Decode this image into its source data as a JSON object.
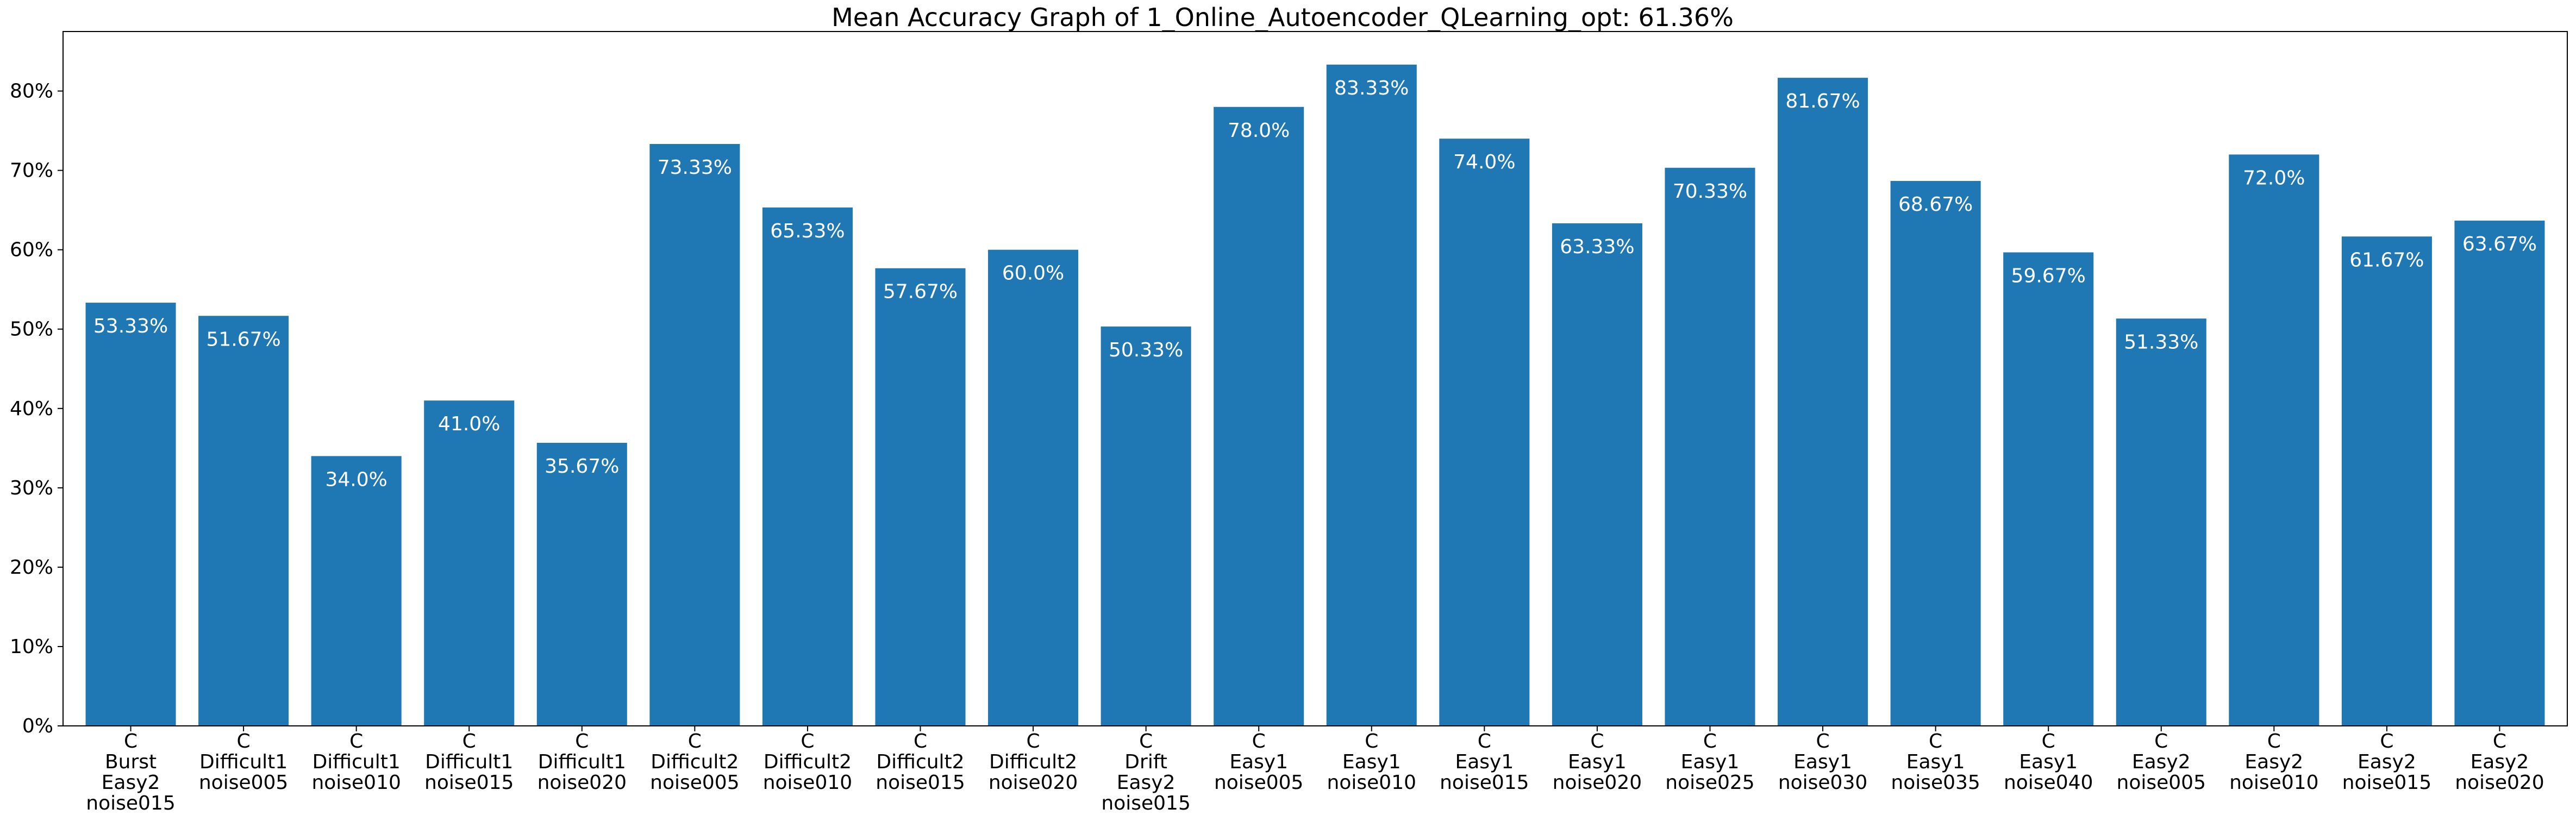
{
  "chart_data": {
    "type": "bar",
    "title": "Mean Accuracy Graph of 1_Online_Autoencoder_QLearning_opt: 61.36%",
    "xlabel": "",
    "ylabel": "",
    "ylim": [
      0,
      87.5
    ],
    "yticks": [
      0,
      10,
      20,
      30,
      40,
      50,
      60,
      70,
      80
    ],
    "ytick_format": "{v}%",
    "bar_color": "#1f77b4",
    "label_color": "#ffffff",
    "grid": false,
    "categories": [
      [
        "C",
        "Burst",
        "Easy2",
        "noise015"
      ],
      [
        "C",
        "Difficult1",
        "noise005"
      ],
      [
        "C",
        "Difficult1",
        "noise010"
      ],
      [
        "C",
        "Difficult1",
        "noise015"
      ],
      [
        "C",
        "Difficult1",
        "noise020"
      ],
      [
        "C",
        "Difficult2",
        "noise005"
      ],
      [
        "C",
        "Difficult2",
        "noise010"
      ],
      [
        "C",
        "Difficult2",
        "noise015"
      ],
      [
        "C",
        "Difficult2",
        "noise020"
      ],
      [
        "C",
        "Drift",
        "Easy2",
        "noise015"
      ],
      [
        "C",
        "Easy1",
        "noise005"
      ],
      [
        "C",
        "Easy1",
        "noise010"
      ],
      [
        "C",
        "Easy1",
        "noise015"
      ],
      [
        "C",
        "Easy1",
        "noise020"
      ],
      [
        "C",
        "Easy1",
        "noise025"
      ],
      [
        "C",
        "Easy1",
        "noise030"
      ],
      [
        "C",
        "Easy1",
        "noise035"
      ],
      [
        "C",
        "Easy1",
        "noise040"
      ],
      [
        "C",
        "Easy2",
        "noise005"
      ],
      [
        "C",
        "Easy2",
        "noise010"
      ],
      [
        "C",
        "Easy2",
        "noise015"
      ],
      [
        "C",
        "Easy2",
        "noise020"
      ]
    ],
    "values": [
      53.33,
      51.67,
      34.0,
      41.0,
      35.67,
      73.33,
      65.33,
      57.67,
      60.0,
      50.33,
      78.0,
      83.33,
      74.0,
      63.33,
      70.33,
      81.67,
      68.67,
      59.67,
      51.33,
      72.0,
      61.67,
      63.67
    ],
    "data_labels": [
      "53.33%",
      "51.67%",
      "34.0%",
      "41.0%",
      "35.67%",
      "73.33%",
      "65.33%",
      "57.67%",
      "60.0%",
      "50.33%",
      "78.0%",
      "83.33%",
      "74.0%",
      "63.33%",
      "70.33%",
      "81.67%",
      "68.67%",
      "59.67%",
      "51.33%",
      "72.0%",
      "61.67%",
      "63.67%"
    ]
  }
}
